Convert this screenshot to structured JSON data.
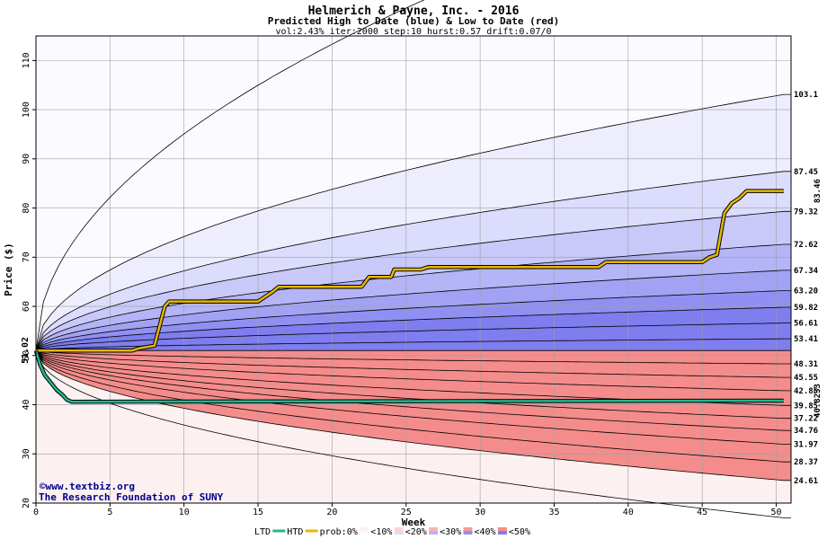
{
  "chart_data": {
    "type": "area",
    "title": "Helmerich & Payne, Inc. - 2016",
    "subtitle": "Predicted High to Date (blue) &  Low to Date (red)",
    "params": "vol:2.43% iter:2000 step:10 hurst:0.57 drift:0.07/0",
    "xlabel": "Week",
    "ylabel": "Price ($)",
    "xlim": [
      0,
      51
    ],
    "ylim": [
      20,
      115
    ],
    "xticks": [
      0,
      5,
      10,
      15,
      20,
      25,
      30,
      35,
      40,
      45,
      50
    ],
    "yticks": [
      20,
      30,
      40,
      50,
      60,
      70,
      80,
      90,
      100,
      110
    ],
    "grid": true,
    "start_price": 51.02,
    "start_label": "51.02",
    "high_quantiles": [
      {
        "label": "103.1",
        "value": 103.1
      },
      {
        "label": "87.45",
        "value": 87.45
      },
      {
        "label": "79.32",
        "value": 79.32
      },
      {
        "label": "72.62",
        "value": 72.62
      },
      {
        "label": "67.34",
        "value": 67.34
      },
      {
        "label": "63.20",
        "value": 63.2
      },
      {
        "label": "59.82",
        "value": 59.82
      },
      {
        "label": "56.61",
        "value": 56.61
      },
      {
        "label": "53.41",
        "value": 53.41
      }
    ],
    "low_quantiles": [
      {
        "label": "48.31",
        "value": 48.31
      },
      {
        "label": "45.55",
        "value": 45.55
      },
      {
        "label": "42.85",
        "value": 42.85
      },
      {
        "label": "39.85",
        "value": 39.85
      },
      {
        "label": "37.22",
        "value": 37.22
      },
      {
        "label": "34.76",
        "value": 34.76
      },
      {
        "label": "31.97",
        "value": 31.97
      },
      {
        "label": "28.37",
        "value": 28.37
      },
      {
        "label": "24.61",
        "value": 24.61
      }
    ],
    "outer_high_end": 150,
    "outer_low_end": 17,
    "htd": {
      "name": "HTD",
      "end_label": "83.46",
      "points": [
        [
          0,
          51.02
        ],
        [
          6.5,
          51.02
        ],
        [
          7,
          51.5
        ],
        [
          8,
          52
        ],
        [
          8.7,
          60
        ],
        [
          9,
          61
        ],
        [
          15,
          61
        ],
        [
          15.5,
          62
        ],
        [
          16,
          63
        ],
        [
          16.4,
          64
        ],
        [
          22,
          64
        ],
        [
          22.5,
          66
        ],
        [
          24,
          66
        ],
        [
          24.2,
          67.5
        ],
        [
          26,
          67.5
        ],
        [
          26.5,
          68
        ],
        [
          38,
          68
        ],
        [
          38.5,
          69
        ],
        [
          45,
          69
        ],
        [
          45.5,
          70
        ],
        [
          46,
          70.5
        ],
        [
          46.5,
          79
        ],
        [
          47,
          81
        ],
        [
          47.5,
          82
        ],
        [
          48,
          83.46
        ],
        [
          50.5,
          83.46
        ]
      ],
      "color": "#e8b800"
    },
    "ltd": {
      "name": "LTD",
      "end_label": "40.8233",
      "points": [
        [
          0,
          51.02
        ],
        [
          0.3,
          48
        ],
        [
          0.6,
          46
        ],
        [
          1,
          44.5
        ],
        [
          1.4,
          43
        ],
        [
          1.8,
          42
        ],
        [
          2.1,
          41
        ],
        [
          2.4,
          40.6
        ],
        [
          50.5,
          40.82
        ]
      ],
      "color": "#20b890"
    },
    "legend": [
      "LTD",
      "HTD",
      "prob:0%",
      "<10%",
      "<20%",
      "<30%",
      "<40%",
      "<50%"
    ],
    "band_colors": {
      "blue": [
        "#fbfbff",
        "#ededfd",
        "#dcdcfc",
        "#c8c8f9",
        "#b4b4f7",
        "#a2a2f4",
        "#9090f2",
        "#7e7eee"
      ],
      "red": [
        "#fdf0f0",
        "#fde3e3",
        "#fcd3d3",
        "#fbc4c4",
        "#f9b6b6",
        "#f8a8a8",
        "#f79999",
        "#f58c8c"
      ]
    }
  },
  "credit": {
    "copyright": "©www.textbiz.org",
    "foundation": "The Research Foundation of SUNY"
  }
}
